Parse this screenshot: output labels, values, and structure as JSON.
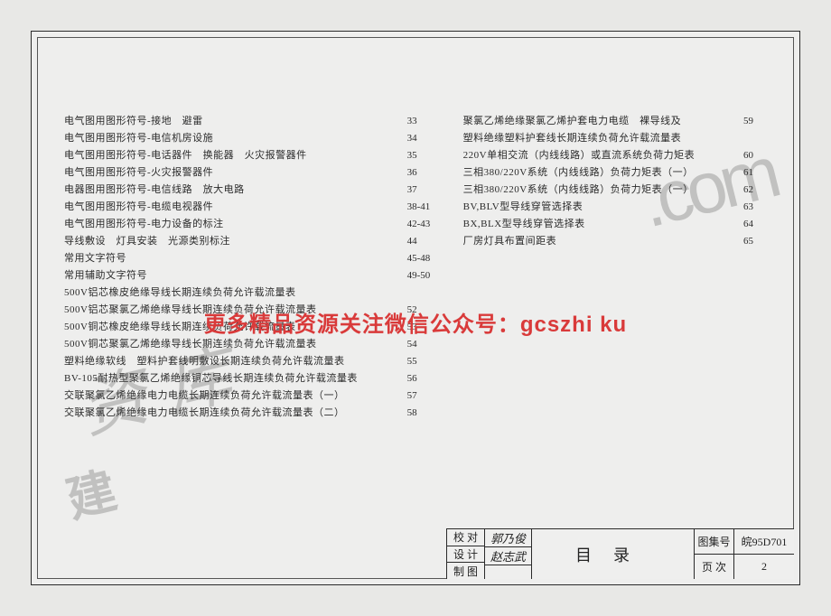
{
  "toc": {
    "left": [
      {
        "label": "电气图用图形符号-接地　避雷",
        "page": "33"
      },
      {
        "label": "电气图用图形符号-电信机房设施",
        "page": "34"
      },
      {
        "label": "电气图用图形符号-电话器件　换能器　火灾报警器件",
        "page": "35"
      },
      {
        "label": "电气图用图形符号-火灾报警器件",
        "page": "36"
      },
      {
        "label": "电器图用图形符号-电信线路　放大电路",
        "page": "37"
      },
      {
        "label": "电气图用图形符号-电缆电视器件",
        "page": "38-41"
      },
      {
        "label": "电气图用图形符号-电力设备的标注",
        "page": "42-43"
      },
      {
        "label": "导线敷设　灯具安装　光源类别标注",
        "page": "44"
      },
      {
        "label": "常用文字符号",
        "page": "45-48"
      },
      {
        "label": "常用辅助文字符号",
        "page": "49-50"
      },
      {
        "label": "500V铝芯橡皮绝缘导线长期连续负荷允许载流量表",
        "page": ""
      },
      {
        "label": "500V铝芯聚氯乙烯绝缘导线长期连续负荷允许载流量表",
        "page": "52"
      },
      {
        "label": "500V铜芯橡皮绝缘导线长期连续负荷允许载流量表",
        "page": "53"
      },
      {
        "label": "500V铜芯聚氯乙烯绝缘导线长期连续负荷允许载流量表",
        "page": "54"
      },
      {
        "label": "塑料绝缘软线　塑料护套线明敷设长期连续负荷允许载流量表",
        "page": "55"
      },
      {
        "label": "BV-105耐热型聚氯乙烯绝缘铜芯导线长期连续负荷允许载流量表",
        "page": "56"
      },
      {
        "label": "交联聚氯乙烯绝缘电力电缆长期连续负荷允许载流量表（一）",
        "page": "57"
      },
      {
        "label": "交联聚氯乙烯绝缘电力电缆长期连续负荷允许载流量表（二）",
        "page": "58"
      }
    ],
    "right": [
      {
        "label": "聚氯乙烯绝缘聚氯乙烯护套电力电缆　裸导线及",
        "page": "59"
      },
      {
        "label": "塑料绝缘塑料护套线长期连续负荷允许载流量表",
        "page": ""
      },
      {
        "label": "220V单相交流（内线线路）或直流系统负荷力矩表",
        "page": "60"
      },
      {
        "label": "三相380/220V系统（内线线路）负荷力矩表（一）",
        "page": "61"
      },
      {
        "label": "三相380/220V系统（内线线路）负荷力矩表（一）",
        "page": "62"
      },
      {
        "label": "BV,BLV型导线穿管选择表",
        "page": "63"
      },
      {
        "label": "BX,BLX型导线穿管选择表",
        "page": "64"
      },
      {
        "label": "厂房灯具布置间距表",
        "page": "65"
      }
    ]
  },
  "watermarks": {
    "url_fragment": ".com",
    "lib": "资 库",
    "corner": "建"
  },
  "overlay_banner": "更多精品资源关注微信公众号：gcszhi ku",
  "titleblock": {
    "rows": [
      "校 对",
      "设 计",
      "制 图"
    ],
    "signatures": [
      "郭乃俊",
      "赵志武",
      ""
    ],
    "title": "目录",
    "meta": {
      "atlas_label": "图集号",
      "atlas_value": "皖95D701",
      "page_label": "页 次",
      "page_value": "2"
    }
  }
}
